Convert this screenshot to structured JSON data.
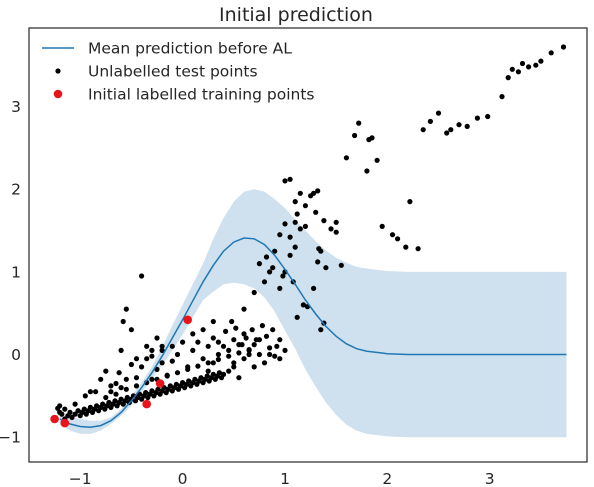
{
  "chart_data": {
    "type": "scatter",
    "title": "Initial prediction",
    "xlabel": "",
    "ylabel": "",
    "xlim": [
      -1.5,
      3.95
    ],
    "ylim": [
      -1.3,
      3.95
    ],
    "xticks": [
      -1,
      0,
      1,
      2,
      3
    ],
    "xtick_labels": [
      "−1",
      "0",
      "1",
      "2",
      "3"
    ],
    "yticks": [
      -1,
      0,
      1,
      2,
      3
    ],
    "ytick_labels": [
      "−1",
      "0",
      "1",
      "2",
      "3"
    ],
    "grid": false,
    "legend_position": "top-left",
    "colors": {
      "mean_line": "#1f77b4",
      "band": "#cfe0ee",
      "test_points": "#000000",
      "train_points": "#e8141c",
      "text": "#262626"
    },
    "legend": [
      {
        "label": "Mean prediction before AL",
        "kind": "line",
        "color": "#1f77b4"
      },
      {
        "label": "Unlabelled test points",
        "kind": "dot",
        "color": "#000000"
      },
      {
        "label": "Initial labelled training points",
        "kind": "dot",
        "color": "#e8141c"
      }
    ],
    "mean_prediction": {
      "x": [
        -1.2,
        -1.1,
        -1.0,
        -0.9,
        -0.8,
        -0.7,
        -0.6,
        -0.5,
        -0.4,
        -0.3,
        -0.2,
        -0.1,
        0.0,
        0.1,
        0.2,
        0.3,
        0.4,
        0.5,
        0.6,
        0.7,
        0.8,
        0.9,
        1.0,
        1.1,
        1.2,
        1.3,
        1.4,
        1.5,
        1.6,
        1.7,
        1.8,
        2.0,
        2.2,
        2.5,
        3.0,
        3.5,
        3.75
      ],
      "y": [
        -0.78,
        -0.84,
        -0.87,
        -0.88,
        -0.86,
        -0.8,
        -0.7,
        -0.56,
        -0.4,
        -0.22,
        -0.02,
        0.2,
        0.42,
        0.65,
        0.88,
        1.08,
        1.25,
        1.36,
        1.41,
        1.4,
        1.33,
        1.2,
        1.03,
        0.85,
        0.66,
        0.49,
        0.34,
        0.22,
        0.13,
        0.07,
        0.04,
        0.01,
        0.0,
        0.0,
        0.0,
        0.0,
        0.0
      ],
      "upper": [
        -0.72,
        -0.76,
        -0.78,
        -0.8,
        -0.8,
        -0.76,
        -0.66,
        -0.5,
        -0.34,
        -0.15,
        0.09,
        0.35,
        0.6,
        0.85,
        1.1,
        1.4,
        1.65,
        1.85,
        1.97,
        2.0,
        1.97,
        1.88,
        1.77,
        1.63,
        1.5,
        1.37,
        1.26,
        1.17,
        1.11,
        1.06,
        1.04,
        1.01,
        1.0,
        1.0,
        1.0,
        1.0,
        1.0
      ],
      "lower": [
        -0.84,
        -0.92,
        -0.96,
        -0.96,
        -0.92,
        -0.84,
        -0.74,
        -0.62,
        -0.46,
        -0.29,
        -0.13,
        0.05,
        0.24,
        0.45,
        0.66,
        0.76,
        0.85,
        0.87,
        0.85,
        0.8,
        0.69,
        0.52,
        0.29,
        0.07,
        -0.18,
        -0.39,
        -0.58,
        -0.73,
        -0.85,
        -0.92,
        -0.96,
        -0.99,
        -1.0,
        -1.0,
        -1.0,
        -1.0,
        -1.0
      ]
    },
    "test_points": [
      [
        -1.22,
        -0.65
      ],
      [
        -1.2,
        -0.7
      ],
      [
        -1.18,
        -0.72
      ],
      [
        -1.15,
        -0.78
      ],
      [
        -1.12,
        -0.74
      ],
      [
        -1.1,
        -0.7
      ],
      [
        -1.08,
        -0.76
      ],
      [
        -1.05,
        -0.72
      ],
      [
        -1.02,
        -0.68
      ],
      [
        -1.0,
        -0.74
      ],
      [
        -0.98,
        -0.7
      ],
      [
        -0.96,
        -0.66
      ],
      [
        -0.94,
        -0.72
      ],
      [
        -0.92,
        -0.68
      ],
      [
        -0.9,
        -0.64
      ],
      [
        -0.88,
        -0.7
      ],
      [
        -0.86,
        -0.66
      ],
      [
        -0.84,
        -0.62
      ],
      [
        -0.82,
        -0.68
      ],
      [
        -0.8,
        -0.64
      ],
      [
        -0.78,
        -0.6
      ],
      [
        -0.76,
        -0.66
      ],
      [
        -0.74,
        -0.62
      ],
      [
        -0.72,
        -0.58
      ],
      [
        -0.7,
        -0.64
      ],
      [
        -0.68,
        -0.6
      ],
      [
        -0.66,
        -0.56
      ],
      [
        -0.64,
        -0.62
      ],
      [
        -0.62,
        -0.58
      ],
      [
        -0.6,
        -0.54
      ],
      [
        -0.58,
        -0.6
      ],
      [
        -0.56,
        -0.56
      ],
      [
        -0.54,
        -0.52
      ],
      [
        -0.52,
        -0.58
      ],
      [
        -0.5,
        -0.54
      ],
      [
        -0.48,
        -0.5
      ],
      [
        -0.46,
        -0.56
      ],
      [
        -0.44,
        -0.52
      ],
      [
        -0.42,
        -0.48
      ],
      [
        -0.4,
        -0.54
      ],
      [
        -0.38,
        -0.5
      ],
      [
        -0.36,
        -0.46
      ],
      [
        -0.34,
        -0.52
      ],
      [
        -0.32,
        -0.48
      ],
      [
        -0.3,
        -0.44
      ],
      [
        -0.28,
        -0.5
      ],
      [
        -0.26,
        -0.46
      ],
      [
        -0.24,
        -0.42
      ],
      [
        -0.22,
        -0.48
      ],
      [
        -0.2,
        -0.44
      ],
      [
        -0.18,
        -0.4
      ],
      [
        -0.16,
        -0.46
      ],
      [
        -0.14,
        -0.42
      ],
      [
        -0.12,
        -0.38
      ],
      [
        -0.1,
        -0.44
      ],
      [
        -0.08,
        -0.4
      ],
      [
        -0.06,
        -0.36
      ],
      [
        -0.04,
        -0.42
      ],
      [
        -0.02,
        -0.38
      ],
      [
        0.0,
        -0.34
      ],
      [
        0.02,
        -0.4
      ],
      [
        0.04,
        -0.36
      ],
      [
        0.06,
        -0.32
      ],
      [
        0.08,
        -0.38
      ],
      [
        0.1,
        -0.34
      ],
      [
        0.12,
        -0.3
      ],
      [
        0.14,
        -0.36
      ],
      [
        0.16,
        -0.32
      ],
      [
        0.18,
        -0.28
      ],
      [
        0.2,
        -0.34
      ],
      [
        0.22,
        -0.3
      ],
      [
        0.24,
        -0.26
      ],
      [
        0.26,
        -0.32
      ],
      [
        0.28,
        -0.28
      ],
      [
        0.3,
        -0.24
      ],
      [
        0.32,
        -0.3
      ],
      [
        0.34,
        -0.26
      ],
      [
        0.36,
        -0.22
      ],
      [
        0.38,
        -0.28
      ],
      [
        0.4,
        -0.24
      ],
      [
        -0.7,
        -0.38
      ],
      [
        -0.62,
        -0.22
      ],
      [
        -0.55,
        -0.3
      ],
      [
        -0.5,
        -0.12
      ],
      [
        -0.45,
        -0.28
      ],
      [
        -0.4,
        -0.15
      ],
      [
        -0.35,
        -0.05
      ],
      [
        -0.3,
        -0.3
      ],
      [
        -0.25,
        -0.18
      ],
      [
        -0.2,
        -0.1
      ],
      [
        -0.15,
        -0.25
      ],
      [
        -0.1,
        -0.08
      ],
      [
        -0.05,
        0.0
      ],
      [
        0.05,
        -0.15
      ],
      [
        0.1,
        0.05
      ],
      [
        0.15,
        0.15
      ],
      [
        0.2,
        -0.05
      ],
      [
        0.25,
        0.1
      ],
      [
        0.3,
        0.2
      ],
      [
        0.35,
        0.0
      ],
      [
        -0.85,
        -0.45
      ],
      [
        -0.75,
        -0.52
      ],
      [
        -0.65,
        -0.48
      ],
      [
        -0.55,
        -0.42
      ],
      [
        -0.45,
        -0.38
      ],
      [
        -0.35,
        -0.34
      ],
      [
        -0.25,
        -0.3
      ],
      [
        -0.15,
        -0.26
      ],
      [
        -0.05,
        -0.22
      ],
      [
        0.05,
        -0.18
      ],
      [
        0.15,
        -0.14
      ],
      [
        0.25,
        -0.1
      ],
      [
        0.35,
        -0.06
      ],
      [
        0.45,
        -0.02
      ],
      [
        0.55,
        0.02
      ],
      [
        0.65,
        0.06
      ],
      [
        0.4,
        0.1
      ],
      [
        0.5,
        0.18
      ],
      [
        0.6,
        0.25
      ],
      [
        0.7,
        0.12
      ],
      [
        0.45,
        -0.2
      ],
      [
        0.5,
        -0.1
      ],
      [
        0.55,
        -0.28
      ],
      [
        0.6,
        -0.05
      ],
      [
        0.65,
        0.05
      ],
      [
        0.7,
        -0.15
      ],
      [
        0.75,
        0.0
      ],
      [
        0.8,
        -0.1
      ],
      [
        0.85,
        0.08
      ],
      [
        0.9,
        -0.02
      ],
      [
        0.42,
        0.28
      ],
      [
        0.48,
        0.4
      ],
      [
        0.52,
        0.32
      ],
      [
        0.58,
        0.12
      ],
      [
        0.62,
        0.2
      ],
      [
        0.68,
        0.3
      ],
      [
        0.72,
        0.18
      ],
      [
        0.78,
        0.35
      ],
      [
        0.82,
        0.22
      ],
      [
        0.88,
        0.3
      ],
      [
        0.92,
        0.1
      ],
      [
        0.95,
        0.18
      ],
      [
        1.0,
        0.05
      ],
      [
        0.3,
        0.4
      ],
      [
        0.2,
        0.3
      ],
      [
        0.1,
        0.25
      ],
      [
        0.0,
        0.15
      ],
      [
        -0.1,
        0.1
      ],
      [
        -0.2,
        0.05
      ],
      [
        -0.3,
        -0.02
      ],
      [
        -0.6,
        0.05
      ],
      [
        -0.58,
        0.4
      ],
      [
        -0.55,
        0.55
      ],
      [
        -0.5,
        0.3
      ],
      [
        -0.4,
        0.95
      ],
      [
        -0.35,
        0.1
      ],
      [
        -0.3,
        0.05
      ],
      [
        -0.25,
        0.2
      ],
      [
        -0.2,
        0.1
      ],
      [
        -0.45,
        -0.05
      ],
      [
        -0.75,
        -0.2
      ],
      [
        -0.8,
        -0.3
      ],
      [
        -0.9,
        -0.45
      ],
      [
        -0.95,
        -0.5
      ],
      [
        -1.05,
        -0.6
      ],
      [
        -1.15,
        -0.66
      ],
      [
        -1.2,
        -0.62
      ],
      [
        -0.65,
        -0.35
      ],
      [
        -0.6,
        -0.4
      ],
      [
        -0.7,
        -0.45
      ],
      [
        0.45,
        0.05
      ],
      [
        0.3,
        -0.1
      ],
      [
        0.35,
        0.15
      ],
      [
        0.55,
        0.12
      ],
      [
        0.65,
        0.0
      ],
      [
        0.75,
        0.18
      ],
      [
        0.85,
        0.0
      ],
      [
        0.95,
        -0.05
      ],
      [
        0.5,
        -0.15
      ],
      [
        0.25,
        -0.2
      ],
      [
        0.6,
        0.55
      ],
      [
        0.7,
        0.75
      ],
      [
        0.75,
        1.1
      ],
      [
        0.8,
        0.88
      ],
      [
        0.85,
        1.0
      ],
      [
        0.9,
        1.25
      ],
      [
        0.95,
        1.45
      ],
      [
        1.0,
        1.58
      ],
      [
        1.05,
        1.42
      ],
      [
        1.1,
        1.3
      ],
      [
        0.95,
        0.8
      ],
      [
        1.0,
        1.0
      ],
      [
        1.05,
        1.2
      ],
      [
        1.1,
        1.6
      ],
      [
        1.15,
        1.52
      ],
      [
        1.2,
        1.55
      ],
      [
        0.82,
        1.18
      ],
      [
        0.88,
        1.05
      ],
      [
        0.98,
        0.95
      ],
      [
        1.08,
        0.88
      ],
      [
        1.12,
        0.45
      ],
      [
        1.18,
        0.6
      ],
      [
        1.22,
        0.58
      ],
      [
        1.28,
        0.8
      ],
      [
        1.32,
        1.12
      ],
      [
        1.35,
        0.3
      ],
      [
        1.38,
        0.38
      ],
      [
        1.4,
        1.05
      ],
      [
        1.3,
        1.72
      ],
      [
        1.33,
        1.28
      ],
      [
        1.05,
        2.12
      ],
      [
        1.2,
        1.8
      ],
      [
        1.15,
        1.95
      ],
      [
        1.25,
        1.92
      ],
      [
        1.28,
        1.95
      ],
      [
        1.32,
        1.98
      ],
      [
        1.35,
        1.25
      ],
      [
        1.38,
        1.62
      ],
      [
        1.45,
        1.52
      ],
      [
        1.5,
        1.6
      ],
      [
        1.0,
        2.1
      ],
      [
        1.1,
        1.85
      ],
      [
        1.12,
        1.7
      ],
      [
        1.5,
        1.48
      ],
      [
        1.55,
        1.08
      ],
      [
        1.6,
        2.38
      ],
      [
        1.68,
        2.65
      ],
      [
        1.72,
        2.8
      ],
      [
        1.8,
        2.22
      ],
      [
        1.85,
        2.62
      ],
      [
        1.9,
        2.35
      ],
      [
        1.82,
        2.6
      ],
      [
        1.95,
        1.55
      ],
      [
        2.05,
        1.45
      ],
      [
        2.1,
        1.4
      ],
      [
        2.18,
        1.3
      ],
      [
        2.22,
        1.85
      ],
      [
        2.3,
        1.28
      ],
      [
        2.35,
        2.72
      ],
      [
        2.42,
        2.82
      ],
      [
        2.5,
        2.92
      ],
      [
        2.58,
        2.68
      ],
      [
        2.62,
        2.72
      ],
      [
        2.7,
        2.78
      ],
      [
        2.78,
        2.76
      ],
      [
        2.88,
        2.86
      ],
      [
        2.98,
        2.88
      ],
      [
        3.12,
        3.12
      ],
      [
        3.18,
        3.35
      ],
      [
        3.22,
        3.45
      ],
      [
        3.28,
        3.42
      ],
      [
        3.32,
        3.52
      ],
      [
        3.38,
        3.48
      ],
      [
        3.45,
        3.5
      ],
      [
        3.5,
        3.55
      ],
      [
        3.6,
        3.65
      ],
      [
        3.72,
        3.72
      ]
    ],
    "train_points": [
      [
        -1.25,
        -0.78
      ],
      [
        -1.15,
        -0.83
      ],
      [
        -0.35,
        -0.6
      ],
      [
        -0.22,
        -0.35
      ],
      [
        0.05,
        0.42
      ]
    ]
  }
}
